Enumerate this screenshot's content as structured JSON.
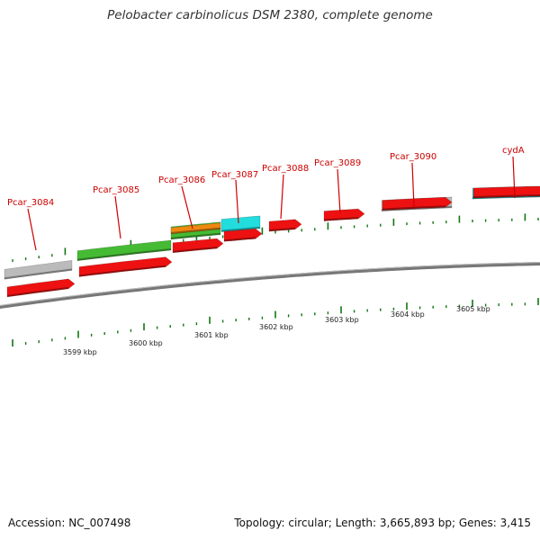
{
  "title": "Pelobacter carbinolicus DSM 2380, complete genome",
  "footer": {
    "accession": "Accession: NC_007498",
    "info": "Topology: circular; Length: 3,665,893 bp; Genes: 3,415"
  },
  "colors": {
    "cds": "#ee1111",
    "gene_grey": "#bbbbbb",
    "gene_green": "#44bb33",
    "gene_orange": "#ee8811",
    "gene_cyan": "#22dddd",
    "label_red": "#cc0000",
    "tick_green": "#117711",
    "backbone": "#777777"
  },
  "genes": [
    {
      "label": "Pcar_3084"
    },
    {
      "label": "Pcar_3085"
    },
    {
      "label": "Pcar_3086"
    },
    {
      "label": "Pcar_3087"
    },
    {
      "label": "Pcar_3088"
    },
    {
      "label": "Pcar_3089"
    },
    {
      "label": "Pcar_3090"
    },
    {
      "label": "cydA"
    }
  ],
  "kbp_labels": [
    "3599 kbp",
    "3600 kbp",
    "3601 kbp",
    "3602 kbp",
    "3603 kbp",
    "3604 kbp",
    "3605 kbp"
  ]
}
